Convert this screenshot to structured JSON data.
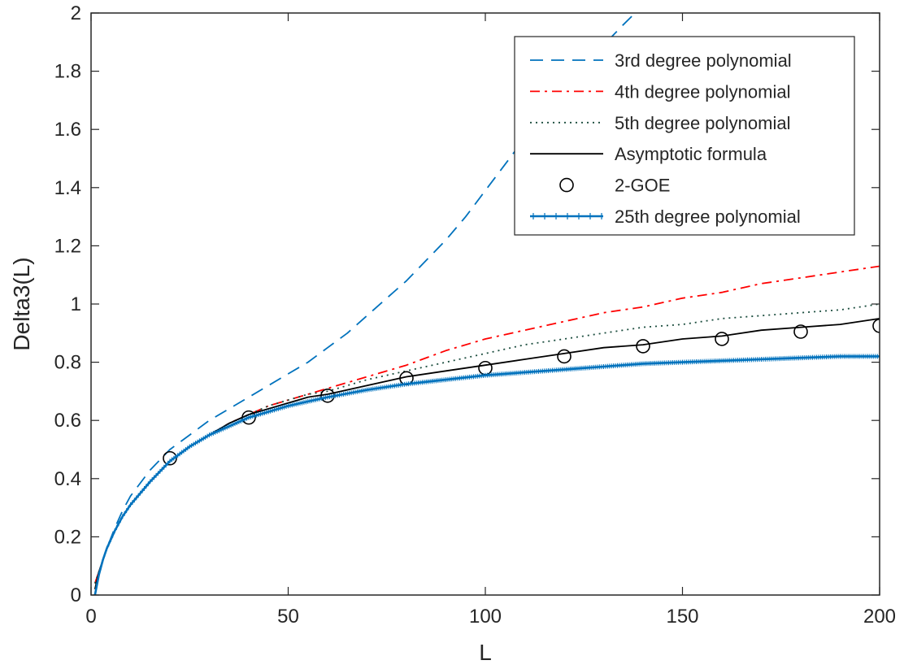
{
  "chart_data": {
    "type": "line",
    "title": "",
    "xlabel": "L",
    "ylabel": "Delta3(L)",
    "xlim": [
      0,
      200
    ],
    "ylim": [
      0,
      2
    ],
    "xticks": [
      0,
      50,
      100,
      150,
      200
    ],
    "yticks": [
      0,
      0.2,
      0.4,
      0.6,
      0.8,
      1,
      1.2,
      1.4,
      1.6,
      1.8,
      2
    ],
    "xtick_labels": [
      "0",
      "50",
      "100",
      "150",
      "200"
    ],
    "ytick_labels": [
      "0",
      "0.2",
      "0.4",
      "0.6",
      "0.8",
      "1",
      "1.2",
      "1.4",
      "1.6",
      "1.8",
      "2"
    ],
    "grid": false,
    "legend_position": "top-right",
    "series": [
      {
        "name": "3rd degree polynomial",
        "style": "dashed",
        "color": "#0072BD",
        "x": [
          1,
          2,
          4,
          6,
          8,
          10,
          15,
          20,
          25,
          30,
          35,
          40,
          45,
          50,
          55,
          60,
          65,
          70,
          75,
          80,
          85,
          90,
          95,
          100,
          105,
          110,
          115,
          120,
          125,
          130,
          135,
          138
        ],
        "y": [
          0.04,
          0.08,
          0.16,
          0.23,
          0.29,
          0.34,
          0.43,
          0.5,
          0.55,
          0.6,
          0.64,
          0.68,
          0.72,
          0.76,
          0.8,
          0.85,
          0.9,
          0.96,
          1.02,
          1.08,
          1.15,
          1.22,
          1.3,
          1.39,
          1.48,
          1.57,
          1.66,
          1.75,
          1.82,
          1.89,
          1.96,
          2.0
        ]
      },
      {
        "name": "4th degree polynomial",
        "style": "dashdot",
        "color": "#FF0000",
        "x": [
          1,
          2,
          4,
          6,
          8,
          10,
          15,
          20,
          25,
          30,
          35,
          40,
          45,
          50,
          55,
          60,
          70,
          80,
          90,
          100,
          110,
          120,
          130,
          140,
          150,
          160,
          170,
          180,
          190,
          200
        ],
        "y": [
          0.04,
          0.08,
          0.16,
          0.22,
          0.27,
          0.31,
          0.39,
          0.46,
          0.51,
          0.55,
          0.59,
          0.62,
          0.65,
          0.67,
          0.69,
          0.71,
          0.75,
          0.79,
          0.84,
          0.88,
          0.91,
          0.94,
          0.97,
          0.99,
          1.02,
          1.04,
          1.07,
          1.09,
          1.11,
          1.13
        ]
      },
      {
        "name": "5th degree polynomial",
        "style": "dotted",
        "color": "#1B4D3E",
        "x": [
          1,
          2,
          4,
          6,
          8,
          10,
          15,
          20,
          25,
          30,
          35,
          40,
          45,
          50,
          55,
          60,
          70,
          80,
          90,
          100,
          110,
          120,
          130,
          140,
          150,
          160,
          170,
          180,
          190,
          200
        ],
        "y": [
          0.04,
          0.08,
          0.16,
          0.22,
          0.27,
          0.31,
          0.39,
          0.46,
          0.51,
          0.55,
          0.59,
          0.62,
          0.65,
          0.67,
          0.69,
          0.7,
          0.74,
          0.77,
          0.8,
          0.83,
          0.86,
          0.88,
          0.9,
          0.92,
          0.93,
          0.95,
          0.96,
          0.97,
          0.98,
          1.0
        ]
      },
      {
        "name": "Asymptotic formula",
        "style": "solid",
        "color": "#000000",
        "x": [
          1,
          2,
          4,
          6,
          8,
          10,
          15,
          20,
          25,
          30,
          35,
          40,
          45,
          50,
          55,
          60,
          70,
          80,
          90,
          100,
          110,
          120,
          130,
          140,
          150,
          160,
          170,
          180,
          190,
          200
        ],
        "y": [
          0.02,
          0.08,
          0.16,
          0.22,
          0.27,
          0.31,
          0.39,
          0.46,
          0.51,
          0.55,
          0.59,
          0.62,
          0.64,
          0.66,
          0.68,
          0.69,
          0.72,
          0.75,
          0.77,
          0.79,
          0.81,
          0.83,
          0.85,
          0.86,
          0.88,
          0.89,
          0.91,
          0.92,
          0.93,
          0.95
        ]
      },
      {
        "name": "2-GOE",
        "style": "markers",
        "marker": "circle",
        "color": "#000000",
        "x": [
          20,
          40,
          60,
          80,
          100,
          120,
          140,
          160,
          180,
          200
        ],
        "y": [
          0.47,
          0.61,
          0.685,
          0.745,
          0.78,
          0.82,
          0.855,
          0.88,
          0.905,
          0.925
        ]
      },
      {
        "name": "25th degree polynomial",
        "style": "solid-plus",
        "color": "#0072BD",
        "x": [
          1,
          2,
          3,
          4,
          6,
          8,
          10,
          15,
          20,
          25,
          30,
          35,
          40,
          45,
          50,
          55,
          60,
          70,
          80,
          90,
          100,
          110,
          120,
          130,
          140,
          150,
          160,
          170,
          180,
          190,
          200
        ],
        "y": [
          0.0,
          0.07,
          0.12,
          0.16,
          0.22,
          0.27,
          0.31,
          0.39,
          0.46,
          0.51,
          0.55,
          0.58,
          0.61,
          0.63,
          0.65,
          0.665,
          0.68,
          0.705,
          0.725,
          0.74,
          0.755,
          0.765,
          0.775,
          0.785,
          0.795,
          0.8,
          0.805,
          0.81,
          0.815,
          0.82,
          0.82
        ]
      }
    ]
  }
}
